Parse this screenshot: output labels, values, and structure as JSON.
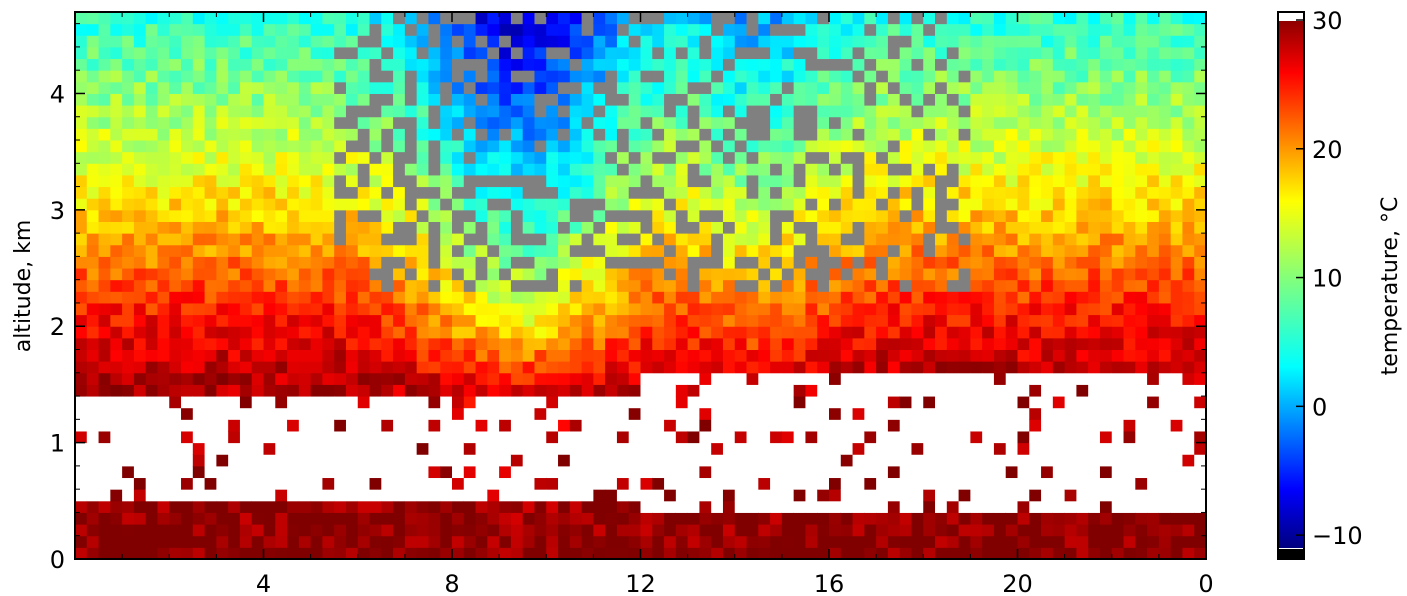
{
  "chart_data": {
    "type": "heatmap",
    "title": "",
    "xlabel": "",
    "ylabel": "altitude, km",
    "x_ticks": [
      "4",
      "8",
      "12",
      "16",
      "20",
      "0"
    ],
    "x_tick_values": [
      4,
      8,
      12,
      16,
      20,
      24
    ],
    "xlim": [
      0,
      24
    ],
    "y_ticks": [
      "0",
      "1",
      "2",
      "3",
      "4"
    ],
    "y_tick_values": [
      0,
      1,
      2,
      3,
      4
    ],
    "ylim": [
      0,
      4.7
    ],
    "colorbar": {
      "label": "temperature, °C",
      "ticks": [
        "−10",
        "0",
        "10",
        "20",
        "30"
      ],
      "tick_values": [
        -10,
        0,
        10,
        20,
        30
      ],
      "range": [
        -11,
        30
      ]
    },
    "colormap": "jet",
    "missing_color": "#ffffff",
    "out_of_range_color": "#808080",
    "grid": false,
    "x_bins_hours": [
      0.5,
      1.5,
      2.5,
      3.5,
      4.5,
      5.5,
      6.5,
      7.5,
      8.5,
      9.5,
      10.5,
      11.5,
      12.5,
      13.5,
      14.5,
      15.5,
      16.5,
      17.5,
      18.5,
      19.5,
      20.5,
      21.5,
      22.5,
      23.5
    ],
    "y_bins_km": [
      0.1,
      0.3,
      0.5,
      0.7,
      0.9,
      1.1,
      1.3,
      1.5,
      1.7,
      1.9,
      2.1,
      2.3,
      2.5,
      2.7,
      2.9,
      3.1,
      3.3,
      3.5,
      3.7,
      3.9,
      4.1,
      4.3,
      4.5
    ],
    "temperature_profile": {
      "altitude_km": [
        0,
        1.5,
        2.0,
        2.8,
        3.5,
        4.7
      ],
      "temperature_c_clear_sky": [
        30,
        28,
        25,
        18,
        13,
        6
      ],
      "temperature_c_convective_08_11h": [
        30,
        25,
        14,
        6,
        0,
        -10
      ]
    },
    "no_data_regions": [
      {
        "hours": [
          0,
          12
        ],
        "altitude_km": [
          0.5,
          1.4
        ]
      },
      {
        "hours": [
          12,
          24
        ],
        "altitude_km": [
          0.45,
          1.65
        ]
      }
    ]
  }
}
